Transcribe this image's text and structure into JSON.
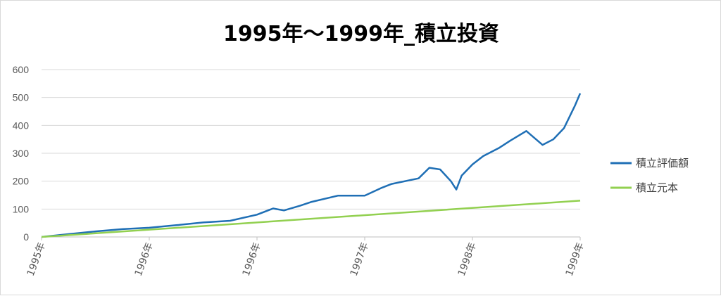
{
  "chart_data": {
    "type": "line",
    "title": "1995年～1999年_積立投資",
    "xlabel": "",
    "ylabel": "",
    "x_tick_labels": [
      "1995年",
      "1996年",
      "1996年",
      "1997年",
      "1998年",
      "1999年"
    ],
    "y_ticks": [
      0,
      100,
      200,
      300,
      400,
      500,
      600
    ],
    "ylim": [
      0,
      600
    ],
    "grid": true,
    "legend_position": "right",
    "series": [
      {
        "name": "積立評価額",
        "color": "#1f6fb5",
        "x": [
          0,
          0.05,
          0.1,
          0.15,
          0.2,
          0.25,
          0.3,
          0.35,
          0.4,
          0.43,
          0.45,
          0.48,
          0.5,
          0.55,
          0.6,
          0.63,
          0.65,
          0.7,
          0.72,
          0.74,
          0.76,
          0.77,
          0.78,
          0.8,
          0.82,
          0.85,
          0.87,
          0.9,
          0.93,
          0.95,
          0.97,
          0.99,
          1.0
        ],
        "values": [
          0,
          10,
          20,
          28,
          33,
          42,
          52,
          58,
          80,
          102,
          95,
          112,
          125,
          148,
          148,
          175,
          190,
          210,
          248,
          242,
          200,
          170,
          220,
          260,
          290,
          320,
          345,
          380,
          330,
          350,
          390,
          470,
          515
        ]
      },
      {
        "name": "積立元本",
        "color": "#92d050",
        "x": [
          0,
          1.0
        ],
        "values": [
          0,
          130
        ]
      }
    ]
  }
}
